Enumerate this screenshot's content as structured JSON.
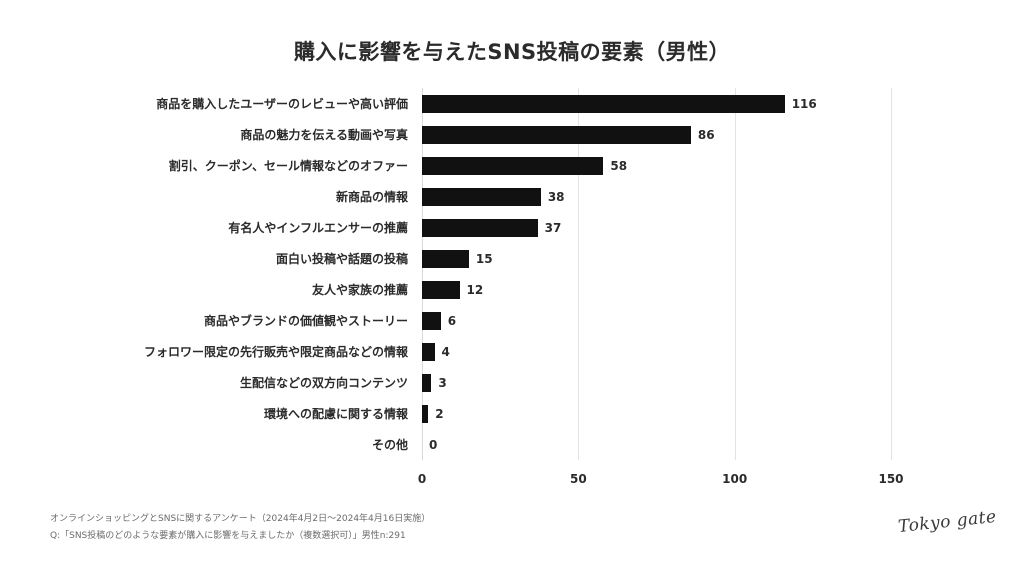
{
  "title": "購入に影響を与えたSNS投稿の要素（男性）",
  "chart_data": {
    "type": "bar",
    "orientation": "horizontal",
    "title": "購入に影響を与えたSNS投稿の要素（男性）",
    "categories": [
      "商品を購入したユーザーのレビューや高い評価",
      "商品の魅力を伝える動画や写真",
      "割引、クーポン、セール情報などのオファー",
      "新商品の情報",
      "有名人やインフルエンサーの推薦",
      "面白い投稿や話題の投稿",
      "友人や家族の推薦",
      "商品やブランドの価値観やストーリー",
      "フォロワー限定の先行販売や限定商品などの情報",
      "生配信などの双方向コンテンツ",
      "環境への配慮に関する情報",
      "その他"
    ],
    "values": [
      116,
      86,
      58,
      38,
      37,
      15,
      12,
      6,
      4,
      3,
      2,
      0
    ],
    "xlabel": "",
    "ylabel": "",
    "xlim": [
      0,
      150
    ],
    "xticks": [
      "0",
      "50",
      "100",
      "150"
    ],
    "grid": true,
    "legend": null,
    "bar_color": "#111111"
  },
  "footer": {
    "line1": "オンラインショッピングとSNSに関するアンケート（2024年4月2日〜2024年4月16日実施）",
    "line2": "Q:「SNS投稿のどのような要素が購入に影響を与えましたか（複数選択可）」男性n:291"
  },
  "logo": "Tokyo gate"
}
